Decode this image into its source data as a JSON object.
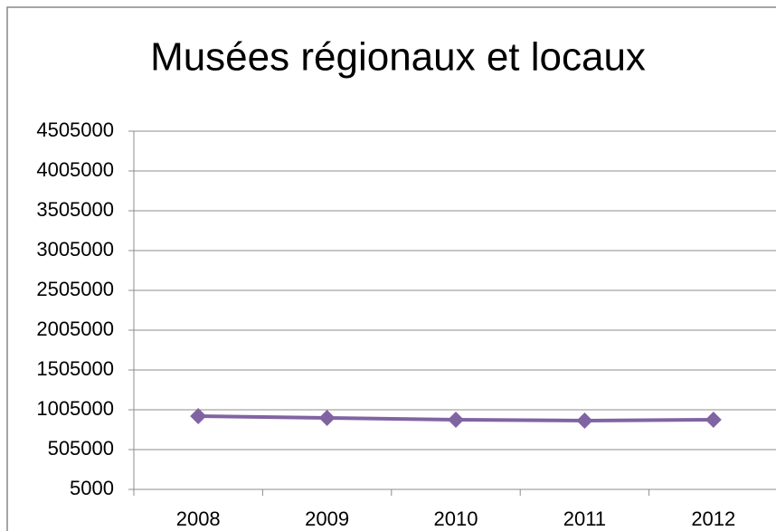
{
  "chart_data": {
    "type": "line",
    "title": "Musées régionaux et locaux",
    "categories": [
      "2008",
      "2009",
      "2010",
      "2011",
      "2012"
    ],
    "series": [
      {
        "name": "Musées régionaux et locaux",
        "color": "#8064a2",
        "values": [
          925000,
          903000,
          880000,
          869000,
          880000
        ]
      }
    ],
    "ylim": [
      5000,
      4505000
    ],
    "yticks": [
      5000,
      505000,
      1005000,
      1505000,
      2005000,
      2505000,
      3005000,
      3505000,
      4005000,
      4505000
    ],
    "grid": true
  }
}
